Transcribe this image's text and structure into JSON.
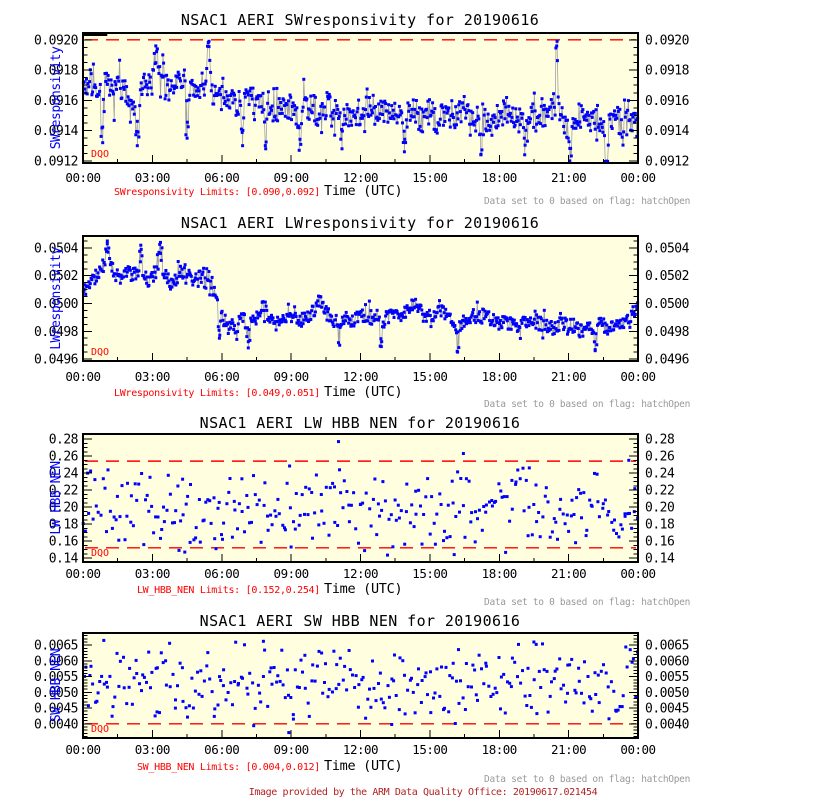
{
  "page": {
    "background": "#ffffff"
  },
  "colors": {
    "plot_background": "#FFFFE0",
    "data_point": "#0000FF",
    "limit_line": "#FF0000",
    "axis": "#000000",
    "connector": "#A0A0A0",
    "note_text": "#999999",
    "caption_text": "#FF0000",
    "y_axis_title": "#0000FF",
    "dqo_text": "#FF0000",
    "footer_text": "#B22222",
    "clipped_marker": "#000000"
  },
  "footer": {
    "text": "Image provided by the ARM Data Quality Office: 20190617.021454"
  },
  "chart_data": [
    {
      "type": "scatter",
      "series_type": "trend-noise",
      "name": "sw-responsivity",
      "title": "NSAC1 AERI SWresponsivity for 20190616",
      "ylabel": "SWresponsivity",
      "xlabel": "Time (UTC)",
      "caption": "SWresponsivity Limits: [0.090,0.092]",
      "note": "Data set to 0 based on flag: hatchOpen",
      "dqo_label": "DQO",
      "x_tick_labels": [
        "00:00",
        "03:00",
        "06:00",
        "09:00",
        "12:00",
        "15:00",
        "18:00",
        "21:00",
        "00:00"
      ],
      "x_major_hours": 3,
      "x_minor_hours": 1.5,
      "x_range_hours": [
        0,
        24
      ],
      "y_majors": [
        0.0912,
        0.0914,
        0.0916,
        0.0918,
        0.092
      ],
      "y_labels": [
        "0.0912",
        "0.0914",
        "0.0916",
        "0.0918",
        "0.0920"
      ],
      "y_minor_step": 5e-05,
      "ylim": [
        0.091186,
        0.092045
      ],
      "limits": [
        0.09,
        0.092
      ],
      "limits_visible": [
        0.092
      ],
      "n_points": 720,
      "seed": 7,
      "noise": 9e-05,
      "noise_tail": 0.00013,
      "clipped_top_hours": [
        0,
        1.05
      ],
      "trend": [
        [
          0,
          0.09168
        ],
        [
          0.3,
          0.09172
        ],
        [
          0.6,
          0.09165
        ],
        [
          1,
          0.0917
        ],
        [
          1.3,
          0.09163
        ],
        [
          1.6,
          0.09168
        ],
        [
          2,
          0.09162
        ],
        [
          2.3,
          0.0915
        ],
        [
          2.6,
          0.09168
        ],
        [
          3,
          0.09172
        ],
        [
          3.2,
          0.0918
        ],
        [
          3.4,
          0.09172
        ],
        [
          3.7,
          0.09168
        ],
        [
          4,
          0.09172
        ],
        [
          4.3,
          0.09175
        ],
        [
          4.6,
          0.09166
        ],
        [
          5,
          0.09168
        ],
        [
          5.3,
          0.09172
        ],
        [
          5.45,
          0.0918
        ],
        [
          5.6,
          0.09165
        ],
        [
          6,
          0.0916
        ],
        [
          6.3,
          0.09165
        ],
        [
          6.6,
          0.09158
        ],
        [
          7,
          0.09158
        ],
        [
          7.3,
          0.09162
        ],
        [
          7.6,
          0.09155
        ],
        [
          8,
          0.09158
        ],
        [
          8.3,
          0.09152
        ],
        [
          8.6,
          0.09158
        ],
        [
          9,
          0.09155
        ],
        [
          9.3,
          0.09148
        ],
        [
          9.6,
          0.09155
        ],
        [
          10,
          0.09155
        ],
        [
          10.3,
          0.09148
        ],
        [
          10.6,
          0.09158
        ],
        [
          11,
          0.09155
        ],
        [
          11.3,
          0.09148
        ],
        [
          11.6,
          0.09152
        ],
        [
          12,
          0.0915
        ],
        [
          12.3,
          0.09155
        ],
        [
          12.6,
          0.09148
        ],
        [
          13,
          0.09152
        ],
        [
          13.3,
          0.09156
        ],
        [
          13.6,
          0.09148
        ],
        [
          14,
          0.0915
        ],
        [
          14.3,
          0.09155
        ],
        [
          14.6,
          0.09146
        ],
        [
          15,
          0.09152
        ],
        [
          15.3,
          0.09146
        ],
        [
          15.6,
          0.09152
        ],
        [
          16,
          0.09146
        ],
        [
          16.3,
          0.09152
        ],
        [
          16.6,
          0.09155
        ],
        [
          17,
          0.09148
        ],
        [
          17.3,
          0.09152
        ],
        [
          17.6,
          0.09144
        ],
        [
          18,
          0.0915
        ],
        [
          18.3,
          0.09155
        ],
        [
          18.6,
          0.09148
        ],
        [
          19,
          0.09145
        ],
        [
          19.3,
          0.09152
        ],
        [
          19.6,
          0.09148
        ],
        [
          20,
          0.0915
        ],
        [
          20.45,
          0.0916
        ],
        [
          20.7,
          0.09148
        ],
        [
          21,
          0.09142
        ],
        [
          21.3,
          0.09148
        ],
        [
          21.6,
          0.0915
        ],
        [
          22,
          0.09146
        ],
        [
          22.3,
          0.09148
        ],
        [
          22.6,
          0.0914
        ],
        [
          23,
          0.09148
        ],
        [
          23.3,
          0.09144
        ],
        [
          23.6,
          0.09146
        ],
        [
          24,
          0.09152
        ]
      ],
      "features": [
        [
          3.15,
          0.09196
        ],
        [
          3.45,
          0.0919
        ],
        [
          5.45,
          0.09199
        ],
        [
          20.5,
          0.09199
        ],
        [
          2.35,
          0.0913
        ],
        [
          9.35,
          0.09127
        ],
        [
          17.2,
          0.09124
        ],
        [
          21.05,
          0.0912
        ],
        [
          22.65,
          0.09108
        ],
        [
          0.85,
          0.09132
        ],
        [
          4.5,
          0.09135
        ],
        [
          6.9,
          0.0913
        ],
        [
          7.9,
          0.09128
        ],
        [
          11.2,
          0.09128
        ],
        [
          13.9,
          0.09126
        ],
        [
          19.1,
          0.09124
        ]
      ]
    },
    {
      "type": "scatter",
      "series_type": "trend-noise",
      "name": "lw-responsivity",
      "title": "NSAC1 AERI LWresponsivity for 20190616",
      "ylabel": "LWresponsivity",
      "xlabel": "Time (UTC)",
      "caption": "LWresponsivity Limits: [0.049,0.051]",
      "note": "Data set to 0 based on flag: hatchOpen",
      "dqo_label": "DQO",
      "x_tick_labels": [
        "00:00",
        "03:00",
        "06:00",
        "09:00",
        "12:00",
        "15:00",
        "18:00",
        "21:00",
        "00:00"
      ],
      "x_major_hours": 3,
      "x_minor_hours": 1.5,
      "x_range_hours": [
        0,
        24
      ],
      "y_majors": [
        0.0496,
        0.0498,
        0.05,
        0.0502,
        0.0504
      ],
      "y_labels": [
        "0.0496",
        "0.0498",
        "0.0500",
        "0.0502",
        "0.0504"
      ],
      "y_minor_step": 5e-05,
      "ylim": [
        0.049586,
        0.050486
      ],
      "limits": [
        0.049,
        0.051
      ],
      "limits_visible": [],
      "n_points": 720,
      "seed": 11,
      "noise": 5e-05,
      "noise_tail": 8e-05,
      "trend": [
        [
          0,
          0.05008
        ],
        [
          0.3,
          0.05015
        ],
        [
          0.6,
          0.0502
        ],
        [
          0.9,
          0.05028
        ],
        [
          1.1,
          0.0503
        ],
        [
          1.3,
          0.05022
        ],
        [
          1.6,
          0.05018
        ],
        [
          1.9,
          0.05024
        ],
        [
          2.2,
          0.0502
        ],
        [
          2.5,
          0.05028
        ],
        [
          2.8,
          0.05016
        ],
        [
          3.1,
          0.05022
        ],
        [
          3.4,
          0.05028
        ],
        [
          3.6,
          0.05018
        ],
        [
          3.9,
          0.05014
        ],
        [
          4.2,
          0.05022
        ],
        [
          4.5,
          0.05024
        ],
        [
          4.8,
          0.05016
        ],
        [
          5.1,
          0.0502
        ],
        [
          5.4,
          0.05022
        ],
        [
          5.6,
          0.05014
        ],
        [
          5.8,
          0.05002
        ],
        [
          6.0,
          0.0499
        ],
        [
          6.3,
          0.04986
        ],
        [
          6.6,
          0.04982
        ],
        [
          6.9,
          0.0499
        ],
        [
          7.2,
          0.04984
        ],
        [
          7.5,
          0.0499
        ],
        [
          7.8,
          0.05
        ],
        [
          8.0,
          0.04992
        ],
        [
          8.3,
          0.04986
        ],
        [
          8.6,
          0.0499
        ],
        [
          9.0,
          0.04992
        ],
        [
          9.4,
          0.04988
        ],
        [
          9.8,
          0.0499
        ],
        [
          10.2,
          0.05002
        ],
        [
          10.5,
          0.04994
        ],
        [
          10.9,
          0.04986
        ],
        [
          11.3,
          0.0499
        ],
        [
          11.7,
          0.04988
        ],
        [
          12.1,
          0.04992
        ],
        [
          12.5,
          0.0499
        ],
        [
          12.9,
          0.04986
        ],
        [
          13.3,
          0.04992
        ],
        [
          13.7,
          0.0499
        ],
        [
          14.1,
          0.04996
        ],
        [
          14.4,
          0.05
        ],
        [
          14.7,
          0.04992
        ],
        [
          15.1,
          0.04992
        ],
        [
          15.5,
          0.04994
        ],
        [
          15.9,
          0.04988
        ],
        [
          16.3,
          0.04984
        ],
        [
          16.7,
          0.0499
        ],
        [
          17.1,
          0.04992
        ],
        [
          17.5,
          0.0499
        ],
        [
          17.9,
          0.04986
        ],
        [
          18.3,
          0.04986
        ],
        [
          18.7,
          0.04984
        ],
        [
          19.1,
          0.04986
        ],
        [
          19.5,
          0.04988
        ],
        [
          19.9,
          0.04984
        ],
        [
          20.3,
          0.04982
        ],
        [
          20.7,
          0.04986
        ],
        [
          21.1,
          0.04984
        ],
        [
          21.5,
          0.0498
        ],
        [
          21.9,
          0.04982
        ],
        [
          22.3,
          0.04986
        ],
        [
          22.7,
          0.04982
        ],
        [
          23.1,
          0.04984
        ],
        [
          23.5,
          0.04988
        ],
        [
          23.8,
          0.04994
        ],
        [
          24,
          0.05
        ]
      ],
      "features": [
        [
          1.05,
          0.05045
        ],
        [
          3.35,
          0.05044
        ],
        [
          2.5,
          0.05042
        ],
        [
          16.2,
          0.04965
        ],
        [
          22.15,
          0.04966
        ],
        [
          12.9,
          0.04969
        ],
        [
          5.9,
          0.04975
        ],
        [
          7.15,
          0.04968
        ],
        [
          11.1,
          0.0497
        ]
      ]
    },
    {
      "type": "scatter",
      "series_type": "scatter",
      "name": "lw-hbb-nen",
      "title": "NSAC1 AERI LW HBB NEN for 20190616",
      "ylabel": "LW HBB NEN",
      "xlabel": "Time (UTC)",
      "caption": "LW_HBB_NEN Limits: [0.152,0.254]",
      "note": "Data set to 0 based on flag: hatchOpen",
      "dqo_label": "DQO",
      "x_tick_labels": [
        "00:00",
        "03:00",
        "06:00",
        "09:00",
        "12:00",
        "15:00",
        "18:00",
        "21:00",
        "00:00"
      ],
      "x_major_hours": 3,
      "x_minor_hours": 1.5,
      "x_range_hours": [
        0,
        24
      ],
      "y_majors": [
        0.14,
        0.16,
        0.18,
        0.2,
        0.22,
        0.24,
        0.26,
        0.28
      ],
      "y_labels": [
        "0.14",
        "0.16",
        "0.18",
        "0.20",
        "0.22",
        "0.24",
        "0.26",
        "0.28"
      ],
      "y_minor_step": 0.005,
      "ylim": [
        0.1353,
        0.2859
      ],
      "limits": [
        0.152,
        0.254
      ],
      "limits_visible": [
        0.152,
        0.254
      ],
      "n_points": 300,
      "seed": 23,
      "center": 0.197,
      "spread": 0.055,
      "outliers": [
        [
          11.05,
          0.277
        ],
        [
          16.45,
          0.263
        ],
        [
          23.6,
          0.255
        ],
        [
          19.3,
          0.246
        ],
        [
          4.15,
          0.149
        ],
        [
          4.4,
          0.147
        ],
        [
          5.75,
          0.151
        ],
        [
          16.05,
          0.144
        ],
        [
          9.0,
          0.153
        ],
        [
          21.3,
          0.158
        ]
      ]
    },
    {
      "type": "scatter",
      "series_type": "scatter",
      "name": "sw-hbb-nen",
      "title": "NSAC1 AERI SW HBB NEN for 20190616",
      "ylabel": "SW HBB NEN",
      "xlabel": "Time (UTC)",
      "caption": "SW_HBB_NEN Limits: [0.004,0.012]",
      "note": "Data set to 0 based on flag: hatchOpen",
      "dqo_label": "DQO",
      "x_tick_labels": [
        "00:00",
        "03:00",
        "06:00",
        "09:00",
        "12:00",
        "15:00",
        "18:00",
        "21:00",
        "00:00"
      ],
      "x_major_hours": 3,
      "x_minor_hours": 1.5,
      "x_range_hours": [
        0,
        24
      ],
      "y_majors": [
        0.004,
        0.0045,
        0.005,
        0.0055,
        0.006,
        0.0065
      ],
      "y_labels": [
        "0.0040",
        "0.0045",
        "0.0050",
        "0.0055",
        "0.0060",
        "0.0065"
      ],
      "y_minor_step": 0.0001,
      "ylim": [
        0.00355,
        0.006885
      ],
      "limits": [
        0.004,
        0.012
      ],
      "limits_visible": [
        0.004
      ],
      "n_points": 300,
      "seed": 41,
      "center": 0.0053,
      "spread": 0.00145,
      "outliers": [
        [
          0.9,
          0.00665
        ],
        [
          7.8,
          0.00662
        ],
        [
          19.5,
          0.0066
        ],
        [
          8.9,
          0.00372
        ],
        [
          13.35,
          0.00398
        ],
        [
          16.1,
          0.00401
        ],
        [
          3.2,
          0.00438
        ],
        [
          9.1,
          0.00415
        ]
      ]
    }
  ]
}
